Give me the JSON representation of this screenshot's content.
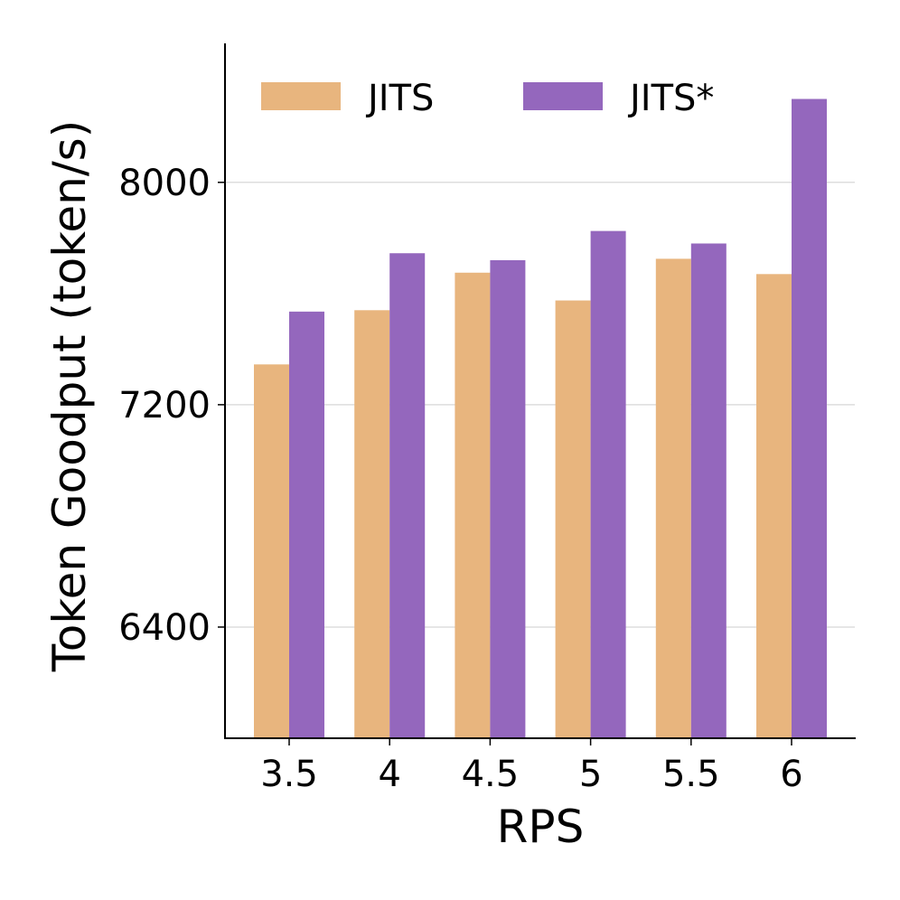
{
  "chart_data": {
    "type": "bar",
    "xlabel": "RPS",
    "ylabel": "Token Goodput (token/s)",
    "categories": [
      "3.5",
      "4",
      "4.5",
      "5",
      "5.5",
      "6"
    ],
    "series": [
      {
        "name": "JITS",
        "color": "#E8B57E",
        "values": [
          7345,
          7540,
          7675,
          7575,
          7725,
          7670
        ]
      },
      {
        "name": "JITS*",
        "color": "#9467BD",
        "values": [
          7535,
          7745,
          7720,
          7825,
          7780,
          8300
        ]
      }
    ],
    "ylim": [
      6000,
      8500
    ],
    "yticks": [
      6400,
      7200,
      8000
    ],
    "grid": "y-major",
    "legend_placement": "top"
  }
}
